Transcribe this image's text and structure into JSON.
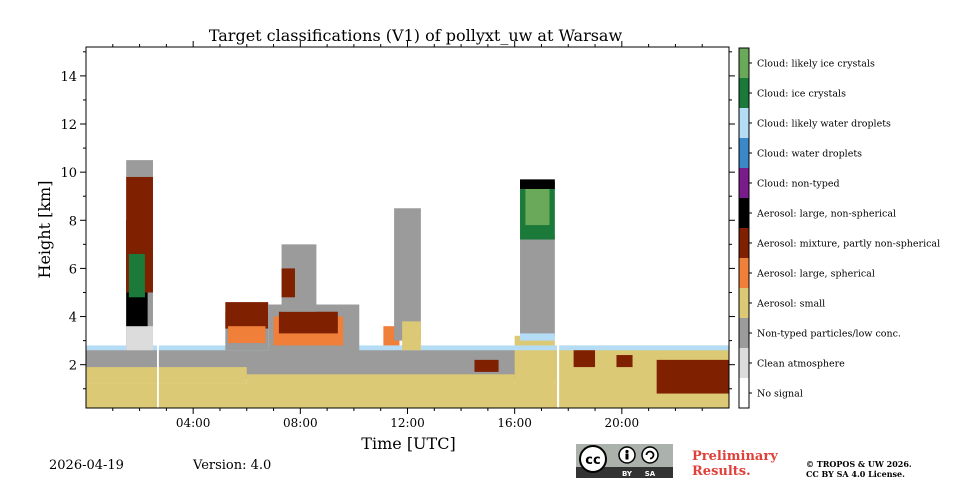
{
  "chart_data": {
    "type": "heatmap",
    "title": "Target classifications (V1) of pollyxt_uw at Warsaw",
    "xlabel": "Time [UTC]",
    "ylabel": "Height [km]",
    "xlim": [
      0,
      24
    ],
    "ylim": [
      0.2,
      15.2
    ],
    "x_ticks": [
      {
        "value": 4,
        "label": "04:00"
      },
      {
        "value": 8,
        "label": "08:00"
      },
      {
        "value": 12,
        "label": "12:00"
      },
      {
        "value": 16,
        "label": "16:00"
      },
      {
        "value": 20,
        "label": "20:00"
      }
    ],
    "y_ticks": [
      {
        "value": 2,
        "label": "2"
      },
      {
        "value": 4,
        "label": "4"
      },
      {
        "value": 6,
        "label": "6"
      },
      {
        "value": 8,
        "label": "8"
      },
      {
        "value": 10,
        "label": "10"
      },
      {
        "value": 12,
        "label": "12"
      },
      {
        "value": 14,
        "label": "14"
      }
    ],
    "classes": [
      {
        "label": "No signal",
        "color": "#ffffff"
      },
      {
        "label": "Clean atmosphere",
        "color": "#dcdcdc"
      },
      {
        "label": "Non-typed particles/low conc.",
        "color": "#9b9b9b"
      },
      {
        "label": "Aerosol: small",
        "color": "#dcc975"
      },
      {
        "label": "Aerosol: large, spherical",
        "color": "#f07f3a"
      },
      {
        "label": "Aerosol: mixture, partly non-spherical",
        "color": "#7f2000"
      },
      {
        "label": "Aerosol: large, non-spherical",
        "color": "#000000"
      },
      {
        "label": "Cloud: non-typed",
        "color": "#7a1b8c"
      },
      {
        "label": "Cloud: water droplets",
        "color": "#3a88c8"
      },
      {
        "label": "Cloud: likely water droplets",
        "color": "#b5dcf5"
      },
      {
        "label": "Cloud: ice crystals",
        "color": "#1b7a3a"
      },
      {
        "label": "Cloud: likely ice crystals",
        "color": "#6aa85a"
      }
    ],
    "regions": [
      {
        "class": 2,
        "x": [
          0,
          24
        ],
        "y": [
          1.4,
          2.7
        ]
      },
      {
        "class": 3,
        "x": [
          0,
          24
        ],
        "y": [
          0.2,
          1.2
        ]
      },
      {
        "class": 3,
        "x": [
          0,
          6
        ],
        "y": [
          1.2,
          1.9
        ]
      },
      {
        "class": 3,
        "x": [
          6,
          16
        ],
        "y": [
          0.2,
          1.6
        ]
      },
      {
        "class": 3,
        "x": [
          16,
          17.5
        ],
        "y": [
          0.2,
          3.2
        ]
      },
      {
        "class": 3,
        "x": [
          17.5,
          24
        ],
        "y": [
          0.2,
          2.8
        ]
      },
      {
        "class": 9,
        "x": [
          0,
          24
        ],
        "y": [
          2.6,
          2.8
        ]
      },
      {
        "class": 2,
        "x": [
          1.5,
          2.5
        ],
        "y": [
          2.6,
          10.5
        ]
      },
      {
        "class": 1,
        "x": [
          1.5,
          2.5
        ],
        "y": [
          2.6,
          3.6
        ]
      },
      {
        "class": 6,
        "x": [
          1.5,
          2.3
        ],
        "y": [
          3.6,
          8.0
        ]
      },
      {
        "class": 5,
        "x": [
          1.5,
          2.5
        ],
        "y": [
          5.0,
          9.8
        ]
      },
      {
        "class": 10,
        "x": [
          1.6,
          2.2
        ],
        "y": [
          4.8,
          6.6
        ]
      },
      {
        "class": 2,
        "x": [
          5.2,
          6.8
        ],
        "y": [
          2.6,
          4.2
        ]
      },
      {
        "class": 5,
        "x": [
          5.2,
          6.8
        ],
        "y": [
          3.5,
          4.6
        ]
      },
      {
        "class": 4,
        "x": [
          5.3,
          6.7
        ],
        "y": [
          2.9,
          3.6
        ]
      },
      {
        "class": 2,
        "x": [
          6.8,
          10.2
        ],
        "y": [
          2.0,
          4.5
        ]
      },
      {
        "class": 4,
        "x": [
          7.0,
          9.6
        ],
        "y": [
          2.8,
          4.0
        ]
      },
      {
        "class": 5,
        "x": [
          7.2,
          9.4
        ],
        "y": [
          3.3,
          4.2
        ]
      },
      {
        "class": 2,
        "x": [
          7.3,
          8.6
        ],
        "y": [
          4.2,
          7.0
        ]
      },
      {
        "class": 5,
        "x": [
          7.3,
          7.8
        ],
        "y": [
          4.8,
          6.0
        ]
      },
      {
        "class": 4,
        "x": [
          11.1,
          11.7
        ],
        "y": [
          2.8,
          3.6
        ]
      },
      {
        "class": 2,
        "x": [
          11.5,
          12.5
        ],
        "y": [
          3.0,
          8.5
        ]
      },
      {
        "class": 3,
        "x": [
          11.8,
          12.5
        ],
        "y": [
          2.6,
          3.8
        ]
      },
      {
        "class": 5,
        "x": [
          14.5,
          15.4
        ],
        "y": [
          1.7,
          2.2
        ]
      },
      {
        "class": 2,
        "x": [
          16.2,
          17.5
        ],
        "y": [
          3.2,
          7.4
        ]
      },
      {
        "class": 10,
        "x": [
          16.2,
          17.5
        ],
        "y": [
          7.2,
          9.6
        ]
      },
      {
        "class": 11,
        "x": [
          16.4,
          17.3
        ],
        "y": [
          7.8,
          9.3
        ]
      },
      {
        "class": 6,
        "x": [
          16.2,
          17.5
        ],
        "y": [
          9.3,
          9.7
        ]
      },
      {
        "class": 9,
        "x": [
          16.2,
          17.5
        ],
        "y": [
          3.0,
          3.3
        ]
      },
      {
        "class": 5,
        "x": [
          18.2,
          19.0
        ],
        "y": [
          1.9,
          2.6
        ]
      },
      {
        "class": 5,
        "x": [
          19.8,
          20.4
        ],
        "y": [
          1.9,
          2.4
        ]
      },
      {
        "class": 5,
        "x": [
          21.3,
          24.0
        ],
        "y": [
          0.8,
          2.2
        ]
      },
      {
        "class": 0,
        "x": [
          2.65,
          2.72
        ],
        "y": [
          0.2,
          15.2
        ]
      },
      {
        "class": 0,
        "x": [
          17.58,
          17.66
        ],
        "y": [
          0.2,
          15.2
        ]
      }
    ]
  },
  "footer": {
    "date": "2026-04-19",
    "version": "Version: 4.0",
    "preliminary_line1": "Preliminary",
    "preliminary_line2": "Results.",
    "copyright_line1": "© TROPOS & UW 2026.",
    "copyright_line2": "CC BY SA 4.0 License.",
    "cc_by": "BY",
    "cc_sa": "SA",
    "cc_logo": "cc"
  },
  "colors": {
    "preliminary": "#e0403a",
    "badge_bg": "#aab2ab",
    "badge_dark": "#333333"
  }
}
